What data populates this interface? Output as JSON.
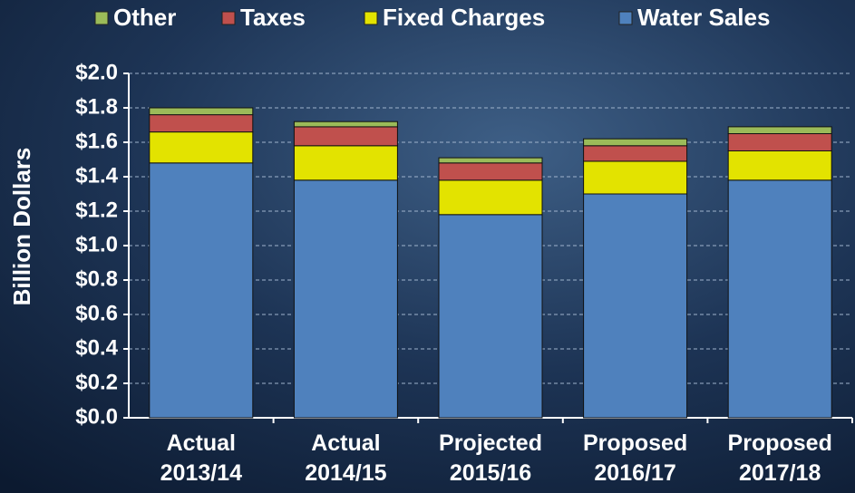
{
  "chart_data": {
    "type": "stacked_bar",
    "y_label": "Billion Dollars",
    "categories": [
      "Actual 2013/14",
      "Actual 2014/15",
      "Projected 2015/16",
      "Proposed 2016/17",
      "Proposed 2017/18"
    ],
    "series": [
      {
        "name": "Water Sales",
        "color": "#4f81bd",
        "values": [
          1.48,
          1.38,
          1.18,
          1.3,
          1.38
        ]
      },
      {
        "name": "Fixed Charges",
        "color": "#e3e300",
        "values": [
          0.18,
          0.2,
          0.2,
          0.19,
          0.17
        ]
      },
      {
        "name": "Taxes",
        "color": "#c0504d",
        "values": [
          0.1,
          0.11,
          0.1,
          0.09,
          0.1
        ]
      },
      {
        "name": "Other",
        "color": "#9bbb59",
        "values": [
          0.04,
          0.03,
          0.03,
          0.04,
          0.04
        ]
      }
    ],
    "ylim": [
      0,
      2.0
    ],
    "yticks": [
      {
        "value": 0,
        "label": "$0.0"
      },
      {
        "value": 0.2,
        "label": "$0.2"
      },
      {
        "value": 0.4,
        "label": "$0.4"
      },
      {
        "value": 0.6,
        "label": "$0.6"
      },
      {
        "value": 0.8,
        "label": "$0.8"
      },
      {
        "value": 1.0,
        "label": "$1.0"
      },
      {
        "value": 1.2,
        "label": "$1.2"
      },
      {
        "value": 1.4,
        "label": "$1.4"
      },
      {
        "value": 1.6,
        "label": "$1.6"
      },
      {
        "value": 1.8,
        "label": "$1.8"
      },
      {
        "value": 2.0,
        "label": "$2.0"
      }
    ],
    "grid": true,
    "legend": "top"
  }
}
